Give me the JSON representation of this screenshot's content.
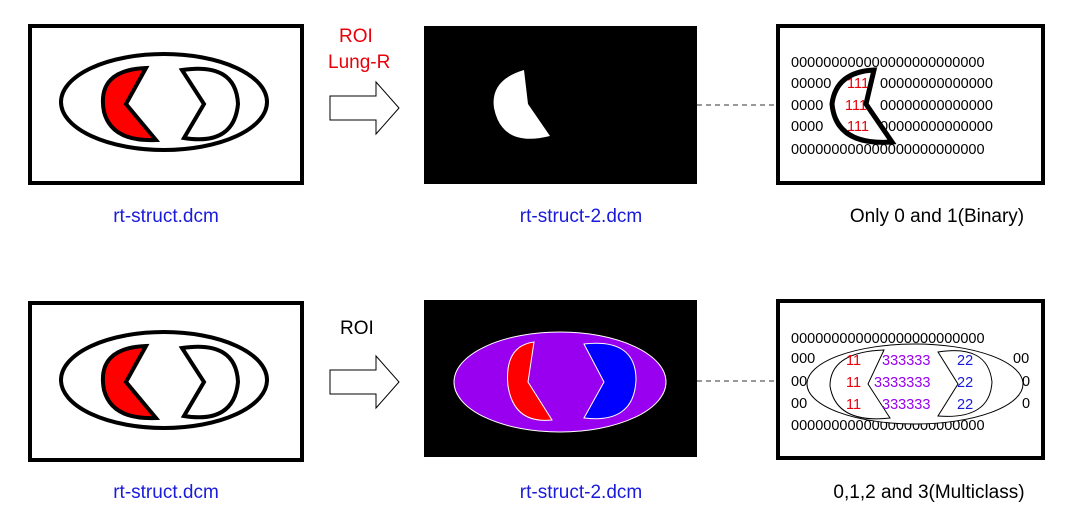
{
  "row1": {
    "arrow_label_line1": "ROI",
    "arrow_label_line2": "Lung-R",
    "caption_left": "rt-struct.dcm",
    "caption_middle": "rt-struct-2.dcm",
    "caption_right": "Only 0 and 1(Binary)",
    "matrix_zero_rows": [
      "000000000000000000000000",
      "00000",
      "0000",
      "0000",
      "000000000000000000000000"
    ],
    "matrix_zero_tails": [
      "",
      "00000000000000",
      "00000000000000",
      "00000000000000",
      ""
    ],
    "matrix_ones": [
      "111",
      "111",
      "111"
    ]
  },
  "row2": {
    "arrow_label": "ROI",
    "caption_left": "rt-struct.dcm",
    "caption_middle": "rt-struct-2.dcm",
    "caption_right": "0,1,2 and 3(Multiclass)",
    "matrix_top": "000000000000000000000000",
    "matrix_bottom": "000000000000000000000000",
    "matrix_left_zeros": [
      "000",
      "00",
      "00"
    ],
    "matrix_right_zeros": [
      "00",
      "0",
      "0"
    ],
    "matrix_ones": [
      "11",
      "11",
      "11"
    ],
    "matrix_threes": [
      "333333",
      "3333333",
      "333333"
    ],
    "matrix_twos": [
      "22",
      "22",
      "22"
    ]
  },
  "colors": {
    "roi_text": "#e8000b",
    "caption_link": "#1a1adb",
    "lung_red": "#ff0000",
    "lung_blue": "#0000ff",
    "body_purple": "#9a00f0",
    "three_purple": "#9a00f0",
    "frame": "#000000"
  }
}
